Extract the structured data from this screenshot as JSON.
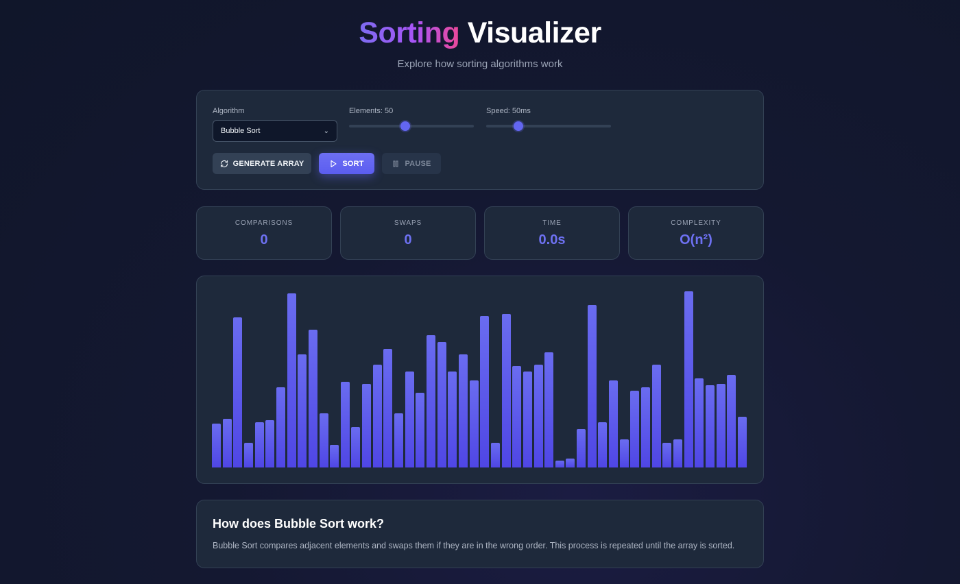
{
  "header": {
    "title_accent": "Sorting",
    "title_rest": "Visualizer",
    "subtitle": "Explore how sorting algorithms work"
  },
  "controls": {
    "algorithm_label": "Algorithm",
    "algorithm_value": "Bubble Sort",
    "elements_label": "Elements: 50",
    "elements_fraction": 0.45,
    "speed_label": "Speed: 50ms",
    "speed_fraction": 0.26,
    "generate_label": "GENERATE ARRAY",
    "sort_label": "SORT",
    "pause_label": "PAUSE"
  },
  "stats": [
    {
      "label": "COMPARISONS",
      "value": "0"
    },
    {
      "label": "SWAPS",
      "value": "0"
    },
    {
      "label": "TIME",
      "value": "0.0s"
    },
    {
      "label": "COMPLEXITY",
      "value": "O(n²)"
    }
  ],
  "chart_data": {
    "type": "bar",
    "max": 100,
    "values": [
      25,
      28,
      86,
      14,
      26,
      27,
      46,
      100,
      65,
      79,
      31,
      13,
      49,
      23,
      48,
      59,
      68,
      31,
      55,
      43,
      76,
      72,
      55,
      65,
      50,
      87,
      14,
      88,
      58,
      55,
      59,
      66,
      4,
      5,
      22,
      93,
      26,
      50,
      16,
      44,
      46,
      59,
      14,
      16,
      101,
      51,
      47,
      48,
      53,
      29
    ]
  },
  "info": {
    "title": "How does Bubble Sort work?",
    "text": "Bubble Sort compares adjacent elements and swaps them if they are in the wrong order. This process is repeated until the array is sorted."
  },
  "colors": {
    "accent": "#6366f1",
    "bar_top": "#6a6cf0",
    "bar_bottom": "#4f46e5"
  }
}
